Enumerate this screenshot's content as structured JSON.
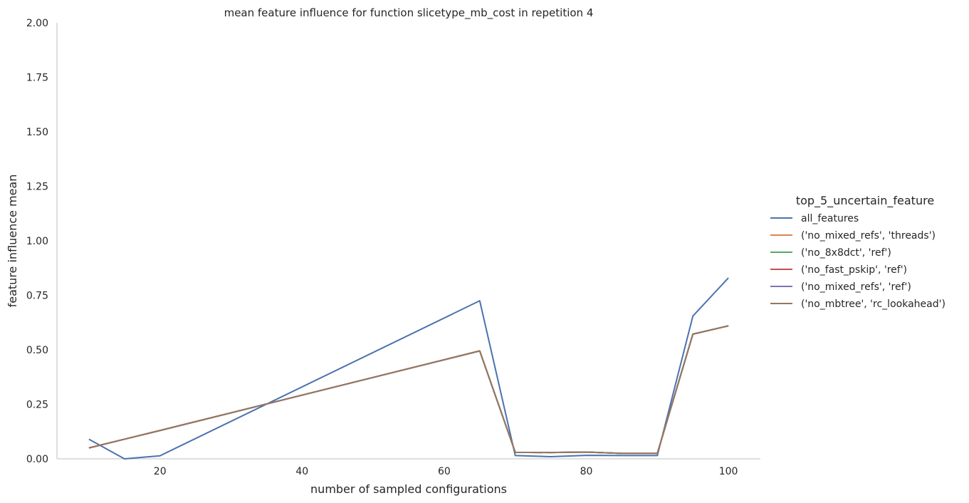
{
  "chart_data": {
    "type": "line",
    "title": "mean feature influence for function slicetype_mb_cost in repetition 4",
    "xlabel": "number of sampled configurations",
    "ylabel": "feature influence mean",
    "xlim": [
      5.5,
      104.5
    ],
    "ylim": [
      0,
      2.0
    ],
    "xticks": [
      20,
      40,
      60,
      80,
      100
    ],
    "yticks": [
      "0.00",
      "0.25",
      "0.50",
      "0.75",
      "1.00",
      "1.25",
      "1.50",
      "1.75",
      "2.00"
    ],
    "grid": false,
    "legend": {
      "title": "top_5_uncertain_feature",
      "placement": "right"
    },
    "x": [
      10,
      15,
      20,
      65,
      70,
      75,
      80,
      85,
      90,
      95,
      100
    ],
    "series": [
      {
        "name": "all_features",
        "color": "#4c72b0",
        "values": [
          0.09,
          0.0,
          0.014,
          0.725,
          0.015,
          0.01,
          0.016,
          0.015,
          0.015,
          0.655,
          0.83
        ]
      },
      {
        "name": "('no_mixed_refs', 'threads')",
        "color": "#dd8452",
        "values": [
          0.05,
          0.09,
          0.13,
          0.495,
          0.03,
          0.029,
          0.031,
          0.025,
          0.025,
          0.572,
          0.61
        ]
      },
      {
        "name": "('no_8x8dct', 'ref')",
        "color": "#55a868",
        "values": [
          0.05,
          0.09,
          0.13,
          0.495,
          0.03,
          0.029,
          0.031,
          0.025,
          0.025,
          0.572,
          0.61
        ]
      },
      {
        "name": "('no_fast_pskip', 'ref')",
        "color": "#c44e52",
        "values": [
          0.05,
          0.09,
          0.13,
          0.495,
          0.03,
          0.029,
          0.031,
          0.025,
          0.025,
          0.572,
          0.61
        ]
      },
      {
        "name": "('no_mixed_refs', 'ref')",
        "color": "#8172b3",
        "values": [
          0.05,
          0.09,
          0.13,
          0.495,
          0.03,
          0.029,
          0.031,
          0.025,
          0.025,
          0.572,
          0.61
        ]
      },
      {
        "name": "('no_mbtree', 'rc_lookahead')",
        "color": "#937860",
        "values": [
          0.05,
          0.09,
          0.13,
          0.495,
          0.03,
          0.029,
          0.031,
          0.025,
          0.025,
          0.572,
          0.61
        ]
      }
    ]
  }
}
